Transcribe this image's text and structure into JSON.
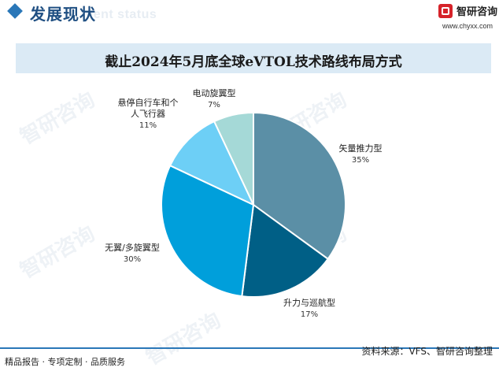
{
  "header": {
    "title": "发展现状",
    "subtitle": "ment status",
    "logo_text": "智研咨询",
    "logo_url": "www.chyxx.com"
  },
  "watermark_text": "智研咨询",
  "chart_data": {
    "type": "pie",
    "title": "截止2024年5月底全球eVTOL技术路线布局方式",
    "slices": [
      {
        "label": "矢量推力型",
        "value": 35,
        "value_label": "35%",
        "color": "#5b8fa6"
      },
      {
        "label": "升力与巡航型",
        "value": 17,
        "value_label": "17%",
        "color": "#005f86"
      },
      {
        "label": "无翼/多旋翼型",
        "value": 30,
        "value_label": "30%",
        "color": "#009fdb"
      },
      {
        "label": "悬停自行车和个人飞行器",
        "value": 11,
        "value_label": "11%",
        "color": "#6dcff6"
      },
      {
        "label": "电动旋翼型",
        "value": 7,
        "value_label": "7%",
        "color": "#a5d9d7"
      }
    ]
  },
  "footer": {
    "left": "精品报告 · 专项定制 · 品质服务",
    "right": "资料来源：VFS、智研咨询整理"
  }
}
